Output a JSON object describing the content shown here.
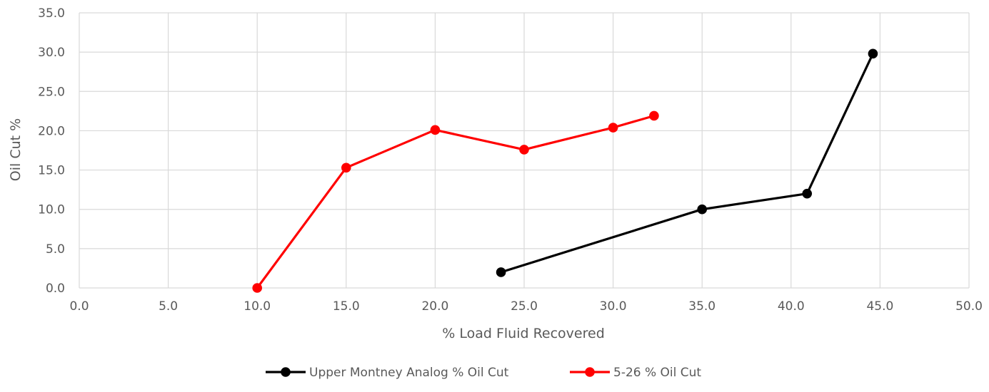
{
  "chart_data": {
    "type": "line",
    "title": "",
    "xlabel": "% Load Fluid Recovered",
    "ylabel": "Oil Cut %",
    "xlim": [
      0,
      50
    ],
    "ylim": [
      0,
      35
    ],
    "x_ticks": [
      "0.0",
      "5.0",
      "10.0",
      "15.0",
      "20.0",
      "25.0",
      "30.0",
      "35.0",
      "40.0",
      "45.0",
      "50.0"
    ],
    "y_ticks": [
      "0.0",
      "5.0",
      "10.0",
      "15.0",
      "20.0",
      "25.0",
      "30.0",
      "35.0"
    ],
    "grid": true,
    "legend_position": "bottom",
    "series": [
      {
        "name": "Upper Montney Analog % Oil Cut",
        "color": "#000000",
        "x": [
          23.7,
          35.0,
          40.9,
          44.6
        ],
        "y": [
          2.0,
          10.0,
          12.0,
          29.8
        ]
      },
      {
        "name": "5-26 % Oil Cut",
        "color": "#ff0000",
        "x": [
          10.0,
          15.0,
          20.0,
          25.0,
          30.0,
          32.3
        ],
        "y": [
          0.0,
          15.3,
          20.1,
          17.6,
          20.4,
          21.9
        ]
      }
    ]
  }
}
